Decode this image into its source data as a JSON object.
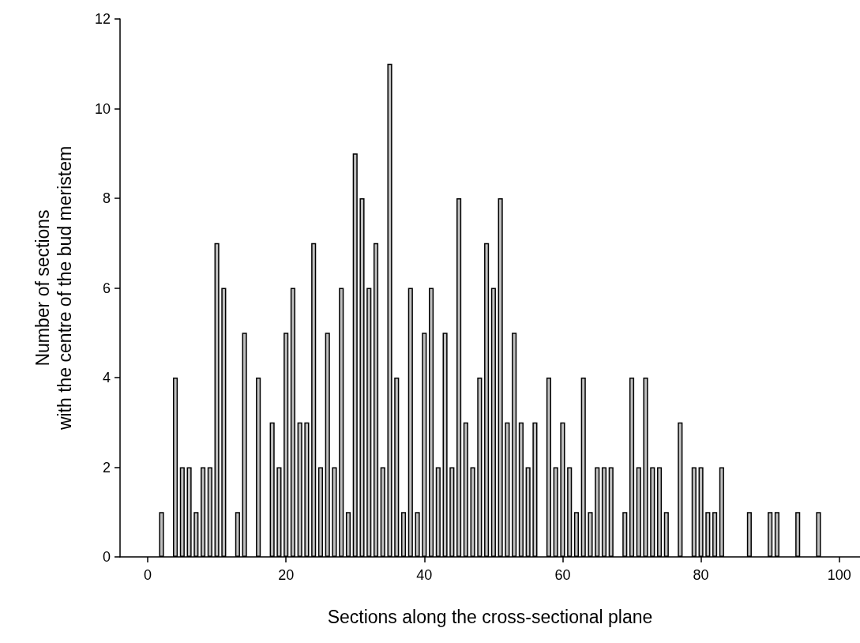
{
  "chart_data": {
    "type": "bar",
    "xlabel": "Sections along the cross-sectional plane",
    "ylabel": "Number of sections\nwith the centre of the bud meristem",
    "x": [
      2,
      4,
      5,
      6,
      7,
      8,
      9,
      10,
      11,
      13,
      14,
      16,
      18,
      19,
      20,
      21,
      22,
      23,
      24,
      25,
      26,
      27,
      28,
      29,
      30,
      31,
      32,
      33,
      34,
      35,
      36,
      37,
      38,
      39,
      40,
      41,
      42,
      43,
      44,
      45,
      46,
      47,
      48,
      49,
      50,
      51,
      52,
      53,
      54,
      55,
      56,
      58,
      59,
      60,
      61,
      62,
      63,
      64,
      65,
      66,
      67,
      69,
      70,
      71,
      72,
      73,
      74,
      75,
      77,
      79,
      80,
      81,
      82,
      83,
      87,
      90,
      91,
      94,
      97
    ],
    "values": [
      1,
      4,
      2,
      2,
      1,
      2,
      2,
      7,
      6,
      1,
      5,
      4,
      3,
      2,
      5,
      6,
      3,
      3,
      7,
      2,
      5,
      2,
      6,
      1,
      9,
      8,
      6,
      7,
      2,
      11,
      4,
      1,
      6,
      1,
      5,
      6,
      2,
      5,
      2,
      8,
      3,
      2,
      4,
      7,
      6,
      8,
      3,
      5,
      3,
      2,
      3,
      4,
      2,
      3,
      2,
      1,
      4,
      1,
      2,
      2,
      2,
      1,
      4,
      2,
      4,
      2,
      2,
      1,
      3,
      2,
      2,
      1,
      1,
      2,
      1,
      1,
      1,
      1,
      1
    ],
    "color": "#c0c0c0",
    "xlim": [
      -4,
      103
    ],
    "xticks": [
      0,
      20,
      40,
      60,
      80,
      100
    ],
    "ylim": [
      0,
      12
    ],
    "yticks": [
      0,
      2,
      4,
      6,
      8,
      10,
      12
    ],
    "grid": false
  }
}
